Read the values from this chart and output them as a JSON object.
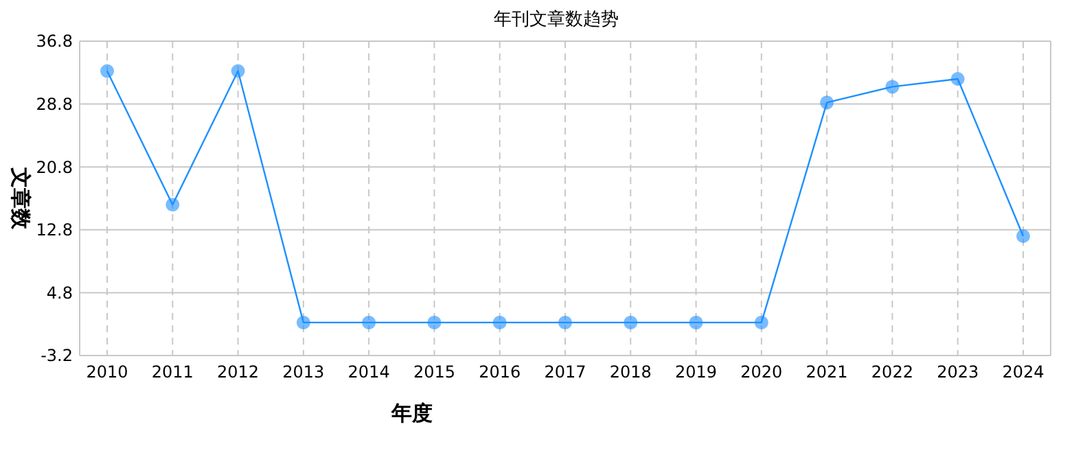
{
  "chart_data": {
    "type": "line",
    "title": "年刊文章数趋势",
    "xlabel": "年度",
    "ylabel": "文章数",
    "categories": [
      "2010",
      "2011",
      "2012",
      "2013",
      "2014",
      "2015",
      "2016",
      "2017",
      "2018",
      "2019",
      "2020",
      "2021",
      "2022",
      "2023",
      "2024"
    ],
    "series": [
      {
        "color": "#1e90ff",
        "values": [
          33,
          16,
          33,
          1,
          1,
          1,
          1,
          1,
          1,
          1,
          1,
          29,
          31,
          32,
          12
        ]
      }
    ],
    "ylim": [
      -3.2,
      36.8
    ],
    "yticks": [
      -3.2,
      4.8,
      12.8,
      20.8,
      28.8,
      36.8
    ],
    "grid": true,
    "marker": "circle"
  }
}
